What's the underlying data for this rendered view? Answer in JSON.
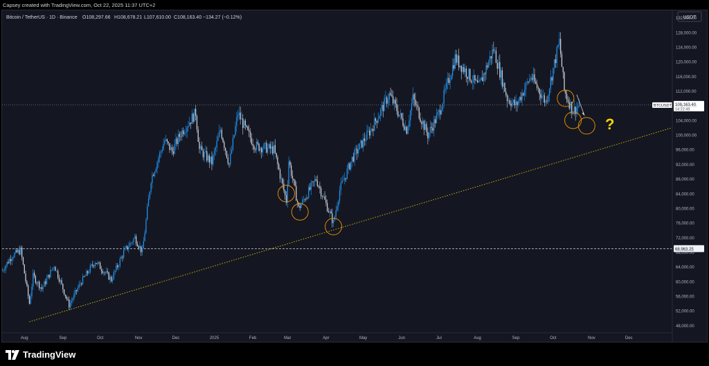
{
  "header": {
    "attribution": "Capsey created with TradingView.com, Oct 22, 2025 11:37 UTC+2"
  },
  "chart_data": {
    "type": "candlestick",
    "title": "Bitcoin / TetherUS · 1D · Binance",
    "ohlc": {
      "open": "O108,297.66",
      "high": "H108,678.21",
      "low": "L107,610.00",
      "close": "C108,163.40",
      "change": "−134.27 (−0.12%)"
    },
    "currency": "USDT",
    "symbol_tag": "BTCUSDT",
    "last_price": "108,163.40",
    "countdown": "14:22:49",
    "level_label": "68,963.25",
    "level_value": 68963.25,
    "annotation": "?",
    "y_ticks": [
      48000,
      52000,
      56000,
      60000,
      64000,
      68000,
      72000,
      76000,
      80000,
      84000,
      88000,
      92000,
      96000,
      100000,
      104000,
      108000,
      112000,
      116000,
      120000,
      124000,
      128000,
      132000
    ],
    "y_tick_labels": [
      "48,000.00",
      "52,000.00",
      "56,000.00",
      "60,000.00",
      "64,000.00",
      "68,000.00",
      "72,000.00",
      "76,000.00",
      "80,000.00",
      "84,000.00",
      "88,000.00",
      "92,000.00",
      "96,000.00",
      "100,000.00",
      "104,000.00",
      "108,000.00",
      "112,000.00",
      "116,000.00",
      "120,000.00",
      "124,000.00",
      "128,000.00",
      "132,000.00"
    ],
    "x_labels": [
      {
        "label": "Aug",
        "date": "2024-08-01"
      },
      {
        "label": "Sep",
        "date": "2024-09-01"
      },
      {
        "label": "Oct",
        "date": "2024-10-01"
      },
      {
        "label": "Nov",
        "date": "2024-11-01"
      },
      {
        "label": "Dec",
        "date": "2024-12-01"
      },
      {
        "label": "2025",
        "date": "2025-01-01"
      },
      {
        "label": "Feb",
        "date": "2025-02-01"
      },
      {
        "label": "Mar",
        "date": "2025-03-01"
      },
      {
        "label": "Apr",
        "date": "2025-04-01"
      },
      {
        "label": "May",
        "date": "2025-05-01"
      },
      {
        "label": "Jun",
        "date": "2025-06-01"
      },
      {
        "label": "Jul",
        "date": "2025-07-01"
      },
      {
        "label": "Aug",
        "date": "2025-08-01"
      },
      {
        "label": "Sep",
        "date": "2025-09-01"
      },
      {
        "label": "Oct",
        "date": "2025-10-01"
      },
      {
        "label": "Nov",
        "date": "2025-11-01"
      },
      {
        "label": "Dec",
        "date": "2025-12-01"
      }
    ],
    "x_range": [
      "2024-07-14",
      "2026-01-05"
    ],
    "y_range": [
      46000,
      134000
    ],
    "trendline": [
      {
        "date": "2024-08-05",
        "value": 49000
      },
      {
        "date": "2026-01-05",
        "value": 102000
      }
    ],
    "path": [
      {
        "date": "2024-07-14",
        "value": 63000
      },
      {
        "date": "2024-07-22",
        "value": 67000
      },
      {
        "date": "2024-07-29",
        "value": 68500
      },
      {
        "date": "2024-08-05",
        "value": 54000
      },
      {
        "date": "2024-08-08",
        "value": 61500
      },
      {
        "date": "2024-08-15",
        "value": 58000
      },
      {
        "date": "2024-08-25",
        "value": 64500
      },
      {
        "date": "2024-09-06",
        "value": 53500
      },
      {
        "date": "2024-09-15",
        "value": 59500
      },
      {
        "date": "2024-09-27",
        "value": 65500
      },
      {
        "date": "2024-10-10",
        "value": 60500
      },
      {
        "date": "2024-10-20",
        "value": 68000
      },
      {
        "date": "2024-10-29",
        "value": 72000
      },
      {
        "date": "2024-11-04",
        "value": 68000
      },
      {
        "date": "2024-11-11",
        "value": 88000
      },
      {
        "date": "2024-11-22",
        "value": 98500
      },
      {
        "date": "2024-11-28",
        "value": 95500
      },
      {
        "date": "2024-12-05",
        "value": 100500
      },
      {
        "date": "2024-12-17",
        "value": 106000
      },
      {
        "date": "2024-12-20",
        "value": 96000
      },
      {
        "date": "2024-12-30",
        "value": 92500
      },
      {
        "date": "2025-01-06",
        "value": 101500
      },
      {
        "date": "2025-01-13",
        "value": 92000
      },
      {
        "date": "2025-01-20",
        "value": 106000
      },
      {
        "date": "2025-01-27",
        "value": 101000
      },
      {
        "date": "2025-02-03",
        "value": 97000
      },
      {
        "date": "2025-02-18",
        "value": 96000
      },
      {
        "date": "2025-02-28",
        "value": 82000
      },
      {
        "date": "2025-03-02",
        "value": 93000
      },
      {
        "date": "2025-03-10",
        "value": 80000
      },
      {
        "date": "2025-03-24",
        "value": 88000
      },
      {
        "date": "2025-04-07",
        "value": 76000
      },
      {
        "date": "2025-04-12",
        "value": 85000
      },
      {
        "date": "2025-04-22",
        "value": 93500
      },
      {
        "date": "2025-05-08",
        "value": 102000
      },
      {
        "date": "2025-05-22",
        "value": 111000
      },
      {
        "date": "2025-06-05",
        "value": 101500
      },
      {
        "date": "2025-06-10",
        "value": 110000
      },
      {
        "date": "2025-06-22",
        "value": 100000
      },
      {
        "date": "2025-07-01",
        "value": 106000
      },
      {
        "date": "2025-07-14",
        "value": 121000
      },
      {
        "date": "2025-08-02",
        "value": 113000
      },
      {
        "date": "2025-08-14",
        "value": 123500
      },
      {
        "date": "2025-08-25",
        "value": 110000
      },
      {
        "date": "2025-09-01",
        "value": 108000
      },
      {
        "date": "2025-09-13",
        "value": 116000
      },
      {
        "date": "2025-09-25",
        "value": 109000
      },
      {
        "date": "2025-10-06",
        "value": 125500
      },
      {
        "date": "2025-10-10",
        "value": 112000
      },
      {
        "date": "2025-10-17",
        "value": 106500
      },
      {
        "date": "2025-10-22",
        "value": 108163
      }
    ],
    "circles": [
      {
        "date": "2025-02-28",
        "value": 84000
      },
      {
        "date": "2025-03-11",
        "value": 79000
      },
      {
        "date": "2025-04-07",
        "value": 75000
      },
      {
        "date": "2025-10-11",
        "value": 110000
      },
      {
        "date": "2025-10-17",
        "value": 104000
      },
      {
        "date": "2025-10-28",
        "value": 102500
      }
    ]
  },
  "footer": {
    "brand": "TradingView"
  },
  "colors": {
    "background": "#141722",
    "candle": "#2196f3",
    "candle_alt": "#d1d4dc",
    "trendline": "#c9b200",
    "circles": "#e08a00",
    "question": "#f5d400",
    "level_line": "#d1d4dc"
  }
}
